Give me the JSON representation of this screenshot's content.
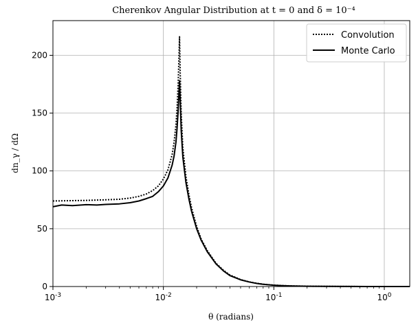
{
  "chart_data": {
    "type": "line",
    "title": "Cherenkov Angular Distribution at t = 0 and δ = 10⁻⁴",
    "xlabel": "θ (radians)",
    "ylabel": "dn_γ / dΩ",
    "xscale": "log",
    "xlim": [
      0.001,
      1.7
    ],
    "ylim": [
      0,
      230
    ],
    "grid": true,
    "legend_position": "top-right",
    "x_ticks": [
      {
        "value": 0.001,
        "label": "10-3"
      },
      {
        "value": 0.01,
        "label": "10-2"
      },
      {
        "value": 0.1,
        "label": "10-1"
      },
      {
        "value": 1,
        "label": "100"
      }
    ],
    "y_ticks": [
      {
        "value": 0,
        "label": "0"
      },
      {
        "value": 50,
        "label": "50"
      },
      {
        "value": 100,
        "label": "100"
      },
      {
        "value": 150,
        "label": "150"
      },
      {
        "value": 200,
        "label": "200"
      }
    ],
    "series": [
      {
        "name": "Convolution",
        "style": "dotted",
        "color": "#000000",
        "x": [
          0.001,
          0.002,
          0.003,
          0.004,
          0.005,
          0.006,
          0.007,
          0.008,
          0.009,
          0.01,
          0.011,
          0.012,
          0.0125,
          0.013,
          0.0133,
          0.0136,
          0.0138,
          0.014,
          0.0142,
          0.0145,
          0.015,
          0.016,
          0.017,
          0.018,
          0.02,
          0.022,
          0.025,
          0.03,
          0.035,
          0.04,
          0.05,
          0.06,
          0.07,
          0.08,
          0.1,
          0.12,
          0.15,
          0.2,
          0.3,
          0.5,
          0.7,
          1.0,
          1.7
        ],
        "y": [
          74,
          74.5,
          75,
          75.5,
          76.5,
          78,
          80,
          83,
          87,
          93,
          101,
          114,
          125,
          140,
          155,
          175,
          195,
          216,
          185,
          150,
          120,
          95,
          80,
          68,
          52,
          41,
          31,
          20,
          14,
          10,
          6,
          4,
          2.8,
          2,
          1.2,
          0.8,
          0.5,
          0.3,
          0.15,
          0.05,
          0.02,
          0.01,
          0
        ]
      },
      {
        "name": "Monte Carlo",
        "style": "solid",
        "color": "#000000",
        "x": [
          0.001,
          0.0012,
          0.0015,
          0.002,
          0.0025,
          0.003,
          0.004,
          0.005,
          0.006,
          0.007,
          0.008,
          0.009,
          0.01,
          0.011,
          0.012,
          0.0125,
          0.013,
          0.0133,
          0.0136,
          0.0138,
          0.014,
          0.0142,
          0.0145,
          0.015,
          0.016,
          0.017,
          0.018,
          0.02,
          0.022,
          0.025,
          0.03,
          0.035,
          0.04,
          0.05,
          0.06,
          0.07,
          0.08,
          0.1,
          0.12,
          0.15,
          0.2,
          0.3,
          0.5,
          0.7,
          1.0,
          1.7
        ],
        "y": [
          69,
          70.5,
          70,
          70.8,
          70.5,
          71,
          71.5,
          72.5,
          74,
          76,
          78,
          82,
          87,
          94,
          105,
          113,
          125,
          137,
          152,
          165,
          178,
          160,
          135,
          112,
          90,
          76,
          65,
          50,
          40,
          30,
          19.5,
          13.5,
          9.5,
          5.8,
          3.9,
          2.7,
          1.9,
          1.1,
          0.75,
          0.45,
          0.25,
          0.12,
          0.04,
          0.02,
          0.01,
          0
        ]
      }
    ]
  }
}
